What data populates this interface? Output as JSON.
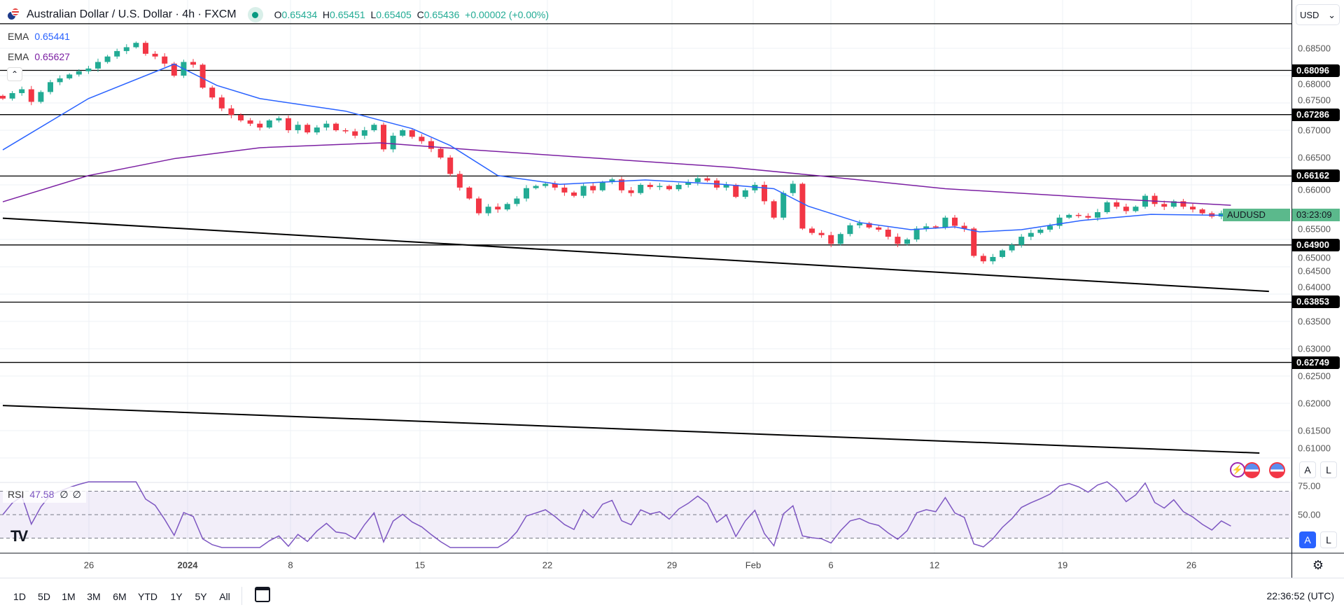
{
  "header": {
    "title": "Australian Dollar / U.S. Dollar · 4h · FXCM",
    "open_label": "O",
    "open": "0.65434",
    "high_label": "H",
    "high": "0.65451",
    "low_label": "L",
    "low": "0.65405",
    "close_label": "C",
    "close": "0.65436",
    "change": "+0.00002 (+0.00%)"
  },
  "legend": [
    {
      "label": "EMA",
      "value": "0.65441",
      "color": "#2962ff"
    },
    {
      "label": "EMA",
      "value": "0.65627",
      "color": "#7b1fa2"
    }
  ],
  "rsi_legend": {
    "label": "RSI",
    "value": "47.58",
    "extra1": "∅",
    "extra2": "∅"
  },
  "axis": {
    "currency": "USD",
    "price_ticks": [
      "0.68500",
      "0.68000",
      "0.67500",
      "0.67000",
      "0.66500",
      "0.66000",
      "0.65500",
      "0.65000",
      "0.64500",
      "0.64000",
      "0.63500",
      "0.63000",
      "0.62500",
      "0.62000",
      "0.61500",
      "0.61000"
    ],
    "level_tags": [
      "0.68096",
      "0.67286",
      "0.66162",
      "0.64900",
      "0.63853",
      "0.62749"
    ],
    "symbol": "AUDUSD",
    "countdown": "03:23:09",
    "rsi_ticks": [
      "75.00",
      "50.00"
    ]
  },
  "time_axis": [
    {
      "label": "26",
      "bold": false
    },
    {
      "label": "2024",
      "bold": true
    },
    {
      "label": "8",
      "bold": false
    },
    {
      "label": "15",
      "bold": false
    },
    {
      "label": "22",
      "bold": false
    },
    {
      "label": "29",
      "bold": false
    },
    {
      "label": "Feb",
      "bold": false
    },
    {
      "label": "6",
      "bold": false
    },
    {
      "label": "12",
      "bold": false
    },
    {
      "label": "19",
      "bold": false
    },
    {
      "label": "26",
      "bold": false
    }
  ],
  "timeframes": [
    "1D",
    "5D",
    "1M",
    "3M",
    "6M",
    "YTD",
    "1Y",
    "5Y",
    "All"
  ],
  "clock": "22:36:52 (UTC)",
  "buttons": {
    "auto": "A",
    "log": "L"
  },
  "colors": {
    "up": "#22ab94",
    "down": "#f23645",
    "ema_fast": "#2962ff",
    "ema_slow": "#7b1fa2",
    "rsi": "#7e57c2"
  },
  "chart_data": {
    "type": "candlestick",
    "closes": [
      0.6758,
      0.6768,
      0.6775,
      0.6752,
      0.677,
      0.6788,
      0.6795,
      0.6802,
      0.6808,
      0.6813,
      0.6825,
      0.6835,
      0.6845,
      0.6852,
      0.686,
      0.684,
      0.6835,
      0.6822,
      0.68,
      0.6825,
      0.682,
      0.6778,
      0.676,
      0.674,
      0.6728,
      0.6718,
      0.6712,
      0.6705,
      0.6718,
      0.6722,
      0.67,
      0.671,
      0.6696,
      0.6705,
      0.6712,
      0.67,
      0.6698,
      0.669,
      0.67,
      0.671,
      0.6665,
      0.669,
      0.67,
      0.6688,
      0.668,
      0.6666,
      0.665,
      0.662,
      0.6595,
      0.6575,
      0.6548,
      0.656,
      0.6555,
      0.6565,
      0.6575,
      0.6594,
      0.6598,
      0.6602,
      0.6595,
      0.6586,
      0.658,
      0.6598,
      0.659,
      0.6605,
      0.661,
      0.659,
      0.6585,
      0.66,
      0.6596,
      0.6598,
      0.6592,
      0.66,
      0.6605,
      0.6612,
      0.6608,
      0.6595,
      0.66,
      0.6578,
      0.659,
      0.66,
      0.657,
      0.654,
      0.6585,
      0.6602,
      0.652,
      0.6512,
      0.6508,
      0.6492,
      0.651,
      0.6526,
      0.653,
      0.6522,
      0.6518,
      0.6505,
      0.6492,
      0.65,
      0.652,
      0.6524,
      0.6522,
      0.654,
      0.6525,
      0.652,
      0.647,
      0.646,
      0.6468,
      0.648,
      0.649,
      0.6505,
      0.6512,
      0.6518,
      0.6525,
      0.654,
      0.6545,
      0.6543,
      0.654,
      0.655,
      0.6568,
      0.656,
      0.6552,
      0.656,
      0.658,
      0.6565,
      0.656,
      0.657,
      0.656,
      0.6555,
      0.6548,
      0.6542,
      0.6548,
      0.65436
    ],
    "ema_fast": [
      [
        0,
        0.6664
      ],
      [
        9,
        0.6758
      ],
      [
        18,
        0.6821
      ],
      [
        22.5,
        0.6782
      ],
      [
        27,
        0.6758
      ],
      [
        36,
        0.6735
      ],
      [
        43,
        0.6703
      ],
      [
        47,
        0.6672
      ],
      [
        52,
        0.6617
      ],
      [
        58.5,
        0.6601
      ],
      [
        67.5,
        0.6609
      ],
      [
        75.6,
        0.6601
      ],
      [
        81,
        0.6593
      ],
      [
        84.6,
        0.6561
      ],
      [
        90,
        0.6531
      ],
      [
        95.4,
        0.6518
      ],
      [
        100,
        0.6523
      ],
      [
        102.6,
        0.6514
      ],
      [
        107,
        0.6518
      ],
      [
        113.4,
        0.6535
      ],
      [
        120.6,
        0.6546
      ],
      [
        129,
        0.65441
      ]
    ],
    "ema_slow": [
      [
        0,
        0.6569
      ],
      [
        9,
        0.6617
      ],
      [
        18,
        0.6648
      ],
      [
        27,
        0.6668
      ],
      [
        39.6,
        0.6677
      ],
      [
        49.5,
        0.6664
      ],
      [
        63,
        0.6648
      ],
      [
        76.5,
        0.6632
      ],
      [
        85.5,
        0.6617
      ],
      [
        99,
        0.6593
      ],
      [
        117,
        0.6574
      ],
      [
        129,
        0.65627
      ]
    ],
    "horizontal_levels": [
      0.6895,
      0.68096,
      0.67286,
      0.66162,
      0.649,
      0.63853,
      0.62749
    ],
    "trendlines": [
      [
        [
          0,
          0.6539
        ],
        [
          133,
          0.6405
        ]
      ],
      [
        [
          0,
          0.6196
        ],
        [
          132,
          0.6109
        ]
      ]
    ],
    "ylim": [
      0.6085,
      0.6895
    ],
    "rsi_levels": [
      70,
      50,
      30
    ]
  }
}
